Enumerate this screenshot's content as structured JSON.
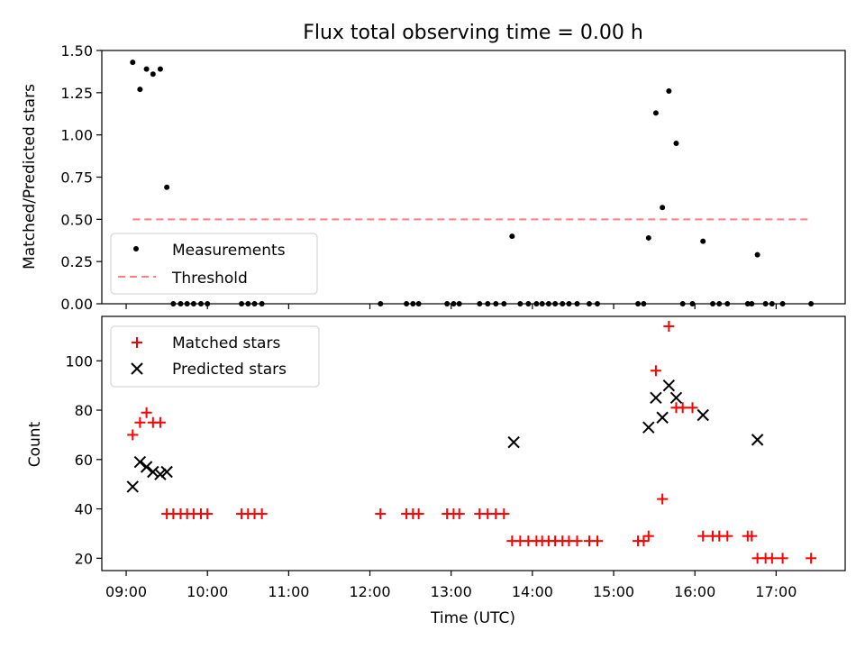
{
  "chart_data": [
    {
      "type": "scatter",
      "title": "Flux total observing time = 0.00 h",
      "xlabel": "",
      "ylabel": "Matched/Predicted stars",
      "xlim": [
        8.7,
        17.85
      ],
      "ylim": [
        0,
        1.5
      ],
      "y_ticks": [
        0.0,
        0.25,
        0.5,
        0.75,
        1.0,
        1.25,
        1.5
      ],
      "y_tick_labels": [
        "0.00",
        "0.25",
        "0.50",
        "0.75",
        "1.00",
        "1.25",
        "1.50"
      ],
      "legend_position": "lower-left",
      "series": [
        {
          "name": "Measurements",
          "type": "scatter",
          "color": "#000000",
          "x": [
            9.08,
            9.17,
            9.25,
            9.33,
            9.42,
            9.5,
            9.58,
            9.67,
            9.75,
            9.83,
            9.92,
            10.0,
            10.42,
            10.5,
            10.58,
            10.67,
            12.13,
            12.45,
            12.53,
            12.6,
            12.95,
            13.03,
            13.1,
            13.35,
            13.45,
            13.55,
            13.65,
            13.75,
            13.85,
            13.95,
            14.05,
            14.12,
            14.2,
            14.28,
            14.37,
            14.45,
            14.55,
            14.7,
            14.8,
            15.3,
            15.37,
            15.43,
            15.52,
            15.6,
            15.68,
            15.77,
            15.85,
            15.97,
            16.1,
            16.22,
            16.3,
            16.4,
            16.65,
            16.7,
            16.77,
            16.87,
            16.95,
            17.08,
            17.43
          ],
          "y": [
            1.43,
            1.27,
            1.39,
            1.36,
            1.39,
            0.69,
            0.0,
            0.0,
            0.0,
            0.0,
            0.0,
            0.0,
            0.0,
            0.0,
            0.0,
            0.0,
            0.0,
            0.0,
            0.0,
            0.0,
            0.0,
            0.0,
            0.0,
            0.0,
            0.0,
            0.0,
            0.0,
            0.4,
            0.0,
            0.0,
            0.0,
            0.0,
            0.0,
            0.0,
            0.0,
            0.0,
            0.0,
            0.0,
            0.0,
            0.0,
            0.0,
            0.39,
            1.13,
            0.57,
            1.26,
            0.95,
            0.0,
            0.0,
            0.37,
            0.0,
            0.0,
            0.0,
            0.0,
            0.0,
            0.29,
            0.0,
            0.0,
            0.0,
            0.0
          ]
        },
        {
          "name": "Threshold",
          "type": "line",
          "color": "#ff7f7f",
          "style": "dashed",
          "x": [
            9.08,
            17.43
          ],
          "y": [
            0.5,
            0.5
          ]
        }
      ]
    },
    {
      "type": "scatter",
      "title": "",
      "xlabel": "Time (UTC)",
      "ylabel": "Count",
      "xlim": [
        8.7,
        17.85
      ],
      "ylim": [
        15,
        118
      ],
      "x_ticks": [
        9,
        10,
        11,
        12,
        13,
        14,
        15,
        16,
        17
      ],
      "x_tick_labels": [
        "09:00",
        "10:00",
        "11:00",
        "12:00",
        "13:00",
        "14:00",
        "15:00",
        "16:00",
        "17:00"
      ],
      "y_ticks": [
        20,
        40,
        60,
        80,
        100
      ],
      "y_tick_labels": [
        "20",
        "40",
        "60",
        "80",
        "100"
      ],
      "legend_position": "upper-left",
      "series": [
        {
          "name": "Matched stars",
          "marker": "plus",
          "color": "#ff0000",
          "x": [
            9.08,
            9.17,
            9.25,
            9.33,
            9.42,
            9.5,
            9.58,
            9.67,
            9.75,
            9.83,
            9.92,
            10.0,
            10.42,
            10.5,
            10.58,
            10.67,
            12.13,
            12.45,
            12.53,
            12.6,
            12.95,
            13.03,
            13.1,
            13.35,
            13.45,
            13.55,
            13.65,
            13.75,
            13.85,
            13.95,
            14.05,
            14.12,
            14.2,
            14.28,
            14.37,
            14.45,
            14.55,
            14.7,
            14.8,
            15.3,
            15.37,
            15.43,
            15.52,
            15.6,
            15.68,
            15.77,
            15.85,
            15.97,
            16.1,
            16.22,
            16.3,
            16.4,
            16.65,
            16.7,
            16.77,
            16.87,
            16.95,
            17.08,
            17.43
          ],
          "y": [
            70,
            75,
            79,
            75,
            75,
            38,
            38,
            38,
            38,
            38,
            38,
            38,
            38,
            38,
            38,
            38,
            38,
            38,
            38,
            38,
            38,
            38,
            38,
            38,
            38,
            38,
            38,
            27,
            27,
            27,
            27,
            27,
            27,
            27,
            27,
            27,
            27,
            27,
            27,
            27,
            27,
            29,
            96,
            44,
            114,
            81,
            81,
            81,
            29,
            29,
            29,
            29,
            29,
            29,
            20,
            20,
            20,
            20,
            20
          ]
        },
        {
          "name": "Predicted stars",
          "marker": "x",
          "color": "#000000",
          "x": [
            9.08,
            9.17,
            9.25,
            9.33,
            9.42,
            9.5,
            13.77,
            15.43,
            15.52,
            15.6,
            15.68,
            15.77,
            16.1,
            16.77
          ],
          "y": [
            49,
            59,
            57,
            55,
            54,
            55,
            67,
            73,
            85,
            77,
            90,
            85,
            78,
            68
          ]
        }
      ]
    }
  ]
}
